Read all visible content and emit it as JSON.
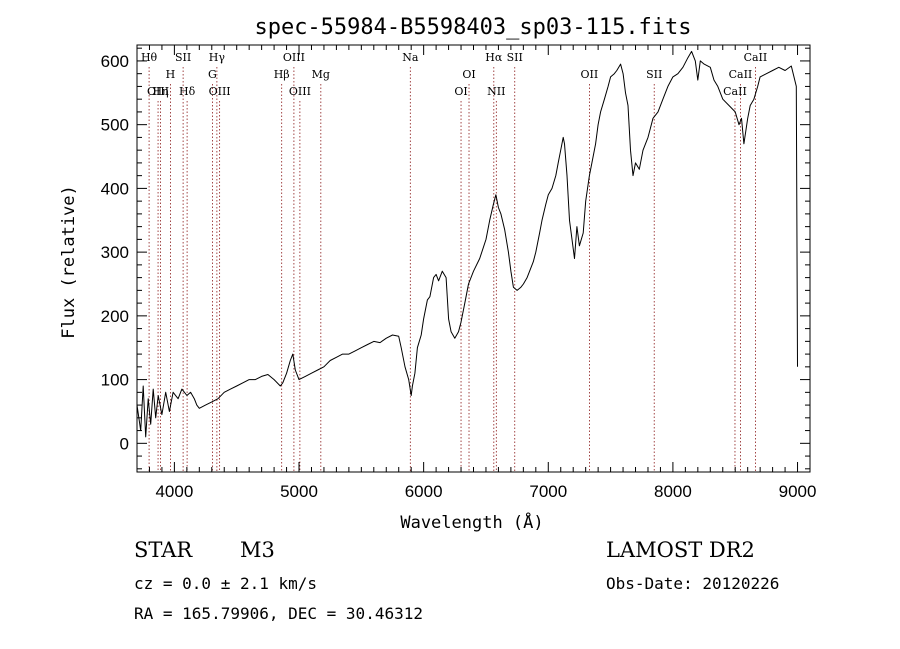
{
  "chart_data": {
    "type": "line",
    "title": "spec-55984-B5598403_sp03-115.fits",
    "xlabel": "Wavelength (Å)",
    "ylabel": "Flux (relative)",
    "xlim": [
      3700,
      9100
    ],
    "ylim": [
      -45,
      625
    ],
    "x_ticks": [
      4000,
      5000,
      6000,
      7000,
      8000,
      9000
    ],
    "y_ticks": [
      0,
      100,
      200,
      300,
      400,
      500,
      600
    ],
    "grid": false,
    "legend": "none",
    "series": [
      {
        "values": [
          [
            3700,
            60
          ],
          [
            3730,
            20
          ],
          [
            3750,
            90
          ],
          [
            3770,
            10
          ],
          [
            3790,
            70
          ],
          [
            3810,
            30
          ],
          [
            3830,
            85
          ],
          [
            3850,
            40
          ],
          [
            3870,
            75
          ],
          [
            3900,
            45
          ],
          [
            3930,
            80
          ],
          [
            3960,
            50
          ],
          [
            3990,
            80
          ],
          [
            4030,
            70
          ],
          [
            4060,
            85
          ],
          [
            4100,
            75
          ],
          [
            4130,
            80
          ],
          [
            4160,
            70
          ],
          [
            4180,
            60
          ],
          [
            4200,
            55
          ],
          [
            4250,
            60
          ],
          [
            4300,
            65
          ],
          [
            4350,
            70
          ],
          [
            4400,
            80
          ],
          [
            4450,
            85
          ],
          [
            4500,
            90
          ],
          [
            4550,
            95
          ],
          [
            4600,
            100
          ],
          [
            4650,
            100
          ],
          [
            4700,
            105
          ],
          [
            4750,
            108
          ],
          [
            4800,
            100
          ],
          [
            4850,
            90
          ],
          [
            4870,
            95
          ],
          [
            4900,
            110
          ],
          [
            4930,
            130
          ],
          [
            4950,
            140
          ],
          [
            4970,
            115
          ],
          [
            5000,
            100
          ],
          [
            5050,
            105
          ],
          [
            5100,
            110
          ],
          [
            5150,
            115
          ],
          [
            5200,
            120
          ],
          [
            5250,
            130
          ],
          [
            5300,
            135
          ],
          [
            5350,
            140
          ],
          [
            5400,
            140
          ],
          [
            5450,
            145
          ],
          [
            5500,
            150
          ],
          [
            5550,
            155
          ],
          [
            5600,
            160
          ],
          [
            5650,
            158
          ],
          [
            5700,
            165
          ],
          [
            5750,
            170
          ],
          [
            5800,
            168
          ],
          [
            5820,
            150
          ],
          [
            5850,
            120
          ],
          [
            5880,
            100
          ],
          [
            5900,
            75
          ],
          [
            5910,
            90
          ],
          [
            5930,
            110
          ],
          [
            5950,
            150
          ],
          [
            5980,
            170
          ],
          [
            6000,
            195
          ],
          [
            6030,
            225
          ],
          [
            6050,
            230
          ],
          [
            6080,
            260
          ],
          [
            6100,
            265
          ],
          [
            6120,
            255
          ],
          [
            6150,
            270
          ],
          [
            6180,
            260
          ],
          [
            6200,
            195
          ],
          [
            6220,
            175
          ],
          [
            6250,
            165
          ],
          [
            6280,
            175
          ],
          [
            6300,
            190
          ],
          [
            6330,
            220
          ],
          [
            6360,
            250
          ],
          [
            6400,
            270
          ],
          [
            6450,
            290
          ],
          [
            6500,
            320
          ],
          [
            6530,
            350
          ],
          [
            6560,
            375
          ],
          [
            6580,
            390
          ],
          [
            6600,
            370
          ],
          [
            6620,
            360
          ],
          [
            6650,
            335
          ],
          [
            6680,
            300
          ],
          [
            6700,
            270
          ],
          [
            6720,
            245
          ],
          [
            6750,
            240
          ],
          [
            6780,
            245
          ],
          [
            6800,
            250
          ],
          [
            6830,
            260
          ],
          [
            6850,
            270
          ],
          [
            6880,
            285
          ],
          [
            6900,
            300
          ],
          [
            6930,
            330
          ],
          [
            6950,
            350
          ],
          [
            6980,
            375
          ],
          [
            7000,
            390
          ],
          [
            7030,
            400
          ],
          [
            7060,
            420
          ],
          [
            7080,
            440
          ],
          [
            7100,
            460
          ],
          [
            7120,
            480
          ],
          [
            7130,
            470
          ],
          [
            7150,
            420
          ],
          [
            7170,
            350
          ],
          [
            7190,
            320
          ],
          [
            7210,
            290
          ],
          [
            7230,
            340
          ],
          [
            7250,
            310
          ],
          [
            7280,
            330
          ],
          [
            7300,
            380
          ],
          [
            7330,
            420
          ],
          [
            7350,
            440
          ],
          [
            7380,
            470
          ],
          [
            7400,
            500
          ],
          [
            7420,
            520
          ],
          [
            7450,
            540
          ],
          [
            7480,
            560
          ],
          [
            7500,
            575
          ],
          [
            7530,
            580
          ],
          [
            7550,
            585
          ],
          [
            7580,
            595
          ],
          [
            7600,
            580
          ],
          [
            7620,
            550
          ],
          [
            7640,
            530
          ],
          [
            7660,
            460
          ],
          [
            7680,
            420
          ],
          [
            7700,
            440
          ],
          [
            7730,
            430
          ],
          [
            7760,
            460
          ],
          [
            7800,
            480
          ],
          [
            7840,
            510
          ],
          [
            7880,
            520
          ],
          [
            7920,
            540
          ],
          [
            7960,
            560
          ],
          [
            8000,
            575
          ],
          [
            8040,
            580
          ],
          [
            8080,
            590
          ],
          [
            8120,
            605
          ],
          [
            8150,
            615
          ],
          [
            8180,
            600
          ],
          [
            8200,
            570
          ],
          [
            8220,
            600
          ],
          [
            8250,
            595
          ],
          [
            8300,
            590
          ],
          [
            8330,
            570
          ],
          [
            8360,
            560
          ],
          [
            8400,
            540
          ],
          [
            8450,
            530
          ],
          [
            8500,
            520
          ],
          [
            8530,
            500
          ],
          [
            8550,
            510
          ],
          [
            8570,
            470
          ],
          [
            8600,
            510
          ],
          [
            8620,
            530
          ],
          [
            8650,
            540
          ],
          [
            8680,
            560
          ],
          [
            8700,
            575
          ],
          [
            8750,
            580
          ],
          [
            8800,
            585
          ],
          [
            8850,
            590
          ],
          [
            8900,
            585
          ],
          [
            8950,
            592
          ],
          [
            8990,
            560
          ],
          [
            9000,
            120
          ]
        ]
      }
    ],
    "line_markers": [
      {
        "label": "Hθ",
        "x": 3797,
        "row": 0
      },
      {
        "label": "OIII",
        "x": 3869,
        "row": 2
      },
      {
        "label": "Hη",
        "x": 3889,
        "row": 2
      },
      {
        "label": "H",
        "x": 3968,
        "row": 1
      },
      {
        "label": "SII",
        "x": 4070,
        "row": 0
      },
      {
        "label": "Hδ",
        "x": 4102,
        "row": 2
      },
      {
        "label": "Hγ",
        "x": 4341,
        "row": 0
      },
      {
        "label": "G",
        "x": 4305,
        "row": 1
      },
      {
        "label": "OIII",
        "x": 4363,
        "row": 2
      },
      {
        "label": "OIII",
        "x": 4959,
        "row": 0
      },
      {
        "label": "Hβ",
        "x": 4861,
        "row": 1
      },
      {
        "label": "OIII",
        "x": 5007,
        "row": 2
      },
      {
        "label": "Mg",
        "x": 5175,
        "row": 1
      },
      {
        "label": "Na",
        "x": 5893,
        "row": 0
      },
      {
        "label": "OI",
        "x": 6364,
        "row": 1
      },
      {
        "label": "OI",
        "x": 6300,
        "row": 2
      },
      {
        "label": "Hα",
        "x": 6563,
        "row": 0
      },
      {
        "label": "SII",
        "x": 6731,
        "row": 0
      },
      {
        "label": "NII",
        "x": 6583,
        "row": 2
      },
      {
        "label": "OII",
        "x": 7330,
        "row": 1
      },
      {
        "label": "SII",
        "x": 7850,
        "row": 1
      },
      {
        "label": "CaII",
        "x": 8662,
        "row": 0
      },
      {
        "label": "CaII",
        "x": 8542,
        "row": 1
      },
      {
        "label": "CaII",
        "x": 8498,
        "row": 2
      }
    ]
  },
  "info": {
    "object_class": "STAR",
    "subclass": "M3",
    "survey": "LAMOST DR2",
    "redshift": "cz = 0.0 ± 2.1 km/s",
    "obs_date": "Obs-Date: 20120226",
    "coords": "RA = 165.79906, DEC =  30.46312"
  },
  "colors": {
    "spectrum": "#000000",
    "marker_lines": "#8b1a1a",
    "background": "#ffffff"
  }
}
